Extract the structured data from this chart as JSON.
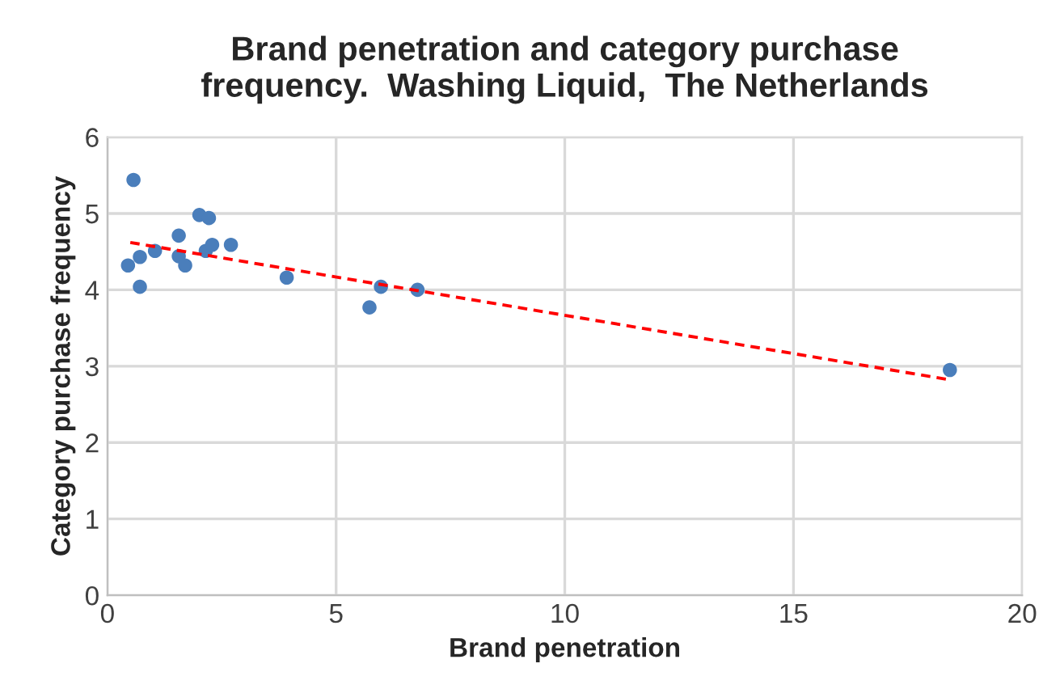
{
  "chart_data": {
    "type": "scatter",
    "title": "Brand penetration and category purchase\nfrequency.  Washing Liquid,  The Netherlands",
    "xlabel": "Brand penetration",
    "ylabel": "Category purchase frequency",
    "xlim": [
      0,
      20
    ],
    "xticks": [
      0,
      5,
      10,
      15,
      20
    ],
    "ylim": [
      0,
      6
    ],
    "yticks": [
      0,
      1,
      2,
      3,
      4,
      5,
      6
    ],
    "grid": true,
    "series": [
      {
        "marker": "circle",
        "color": "#4a7ebb",
        "x": [
          0.57,
          0.45,
          0.71,
          0.71,
          1.04,
          1.56,
          1.56,
          1.7,
          2.01,
          2.22,
          2.15,
          2.29,
          2.7,
          3.92,
          5.73,
          5.98,
          6.78,
          18.42
        ],
        "values": [
          5.44,
          4.32,
          4.43,
          4.04,
          4.51,
          4.71,
          4.44,
          4.32,
          4.98,
          4.94,
          4.51,
          4.59,
          4.59,
          4.16,
          3.77,
          4.04,
          4.0,
          2.95
        ]
      },
      {
        "type": "line",
        "color": "#ff0000",
        "line_style": "dashed",
        "x": [
          0.5,
          18.44
        ],
        "values": [
          4.62,
          2.82
        ]
      }
    ]
  }
}
